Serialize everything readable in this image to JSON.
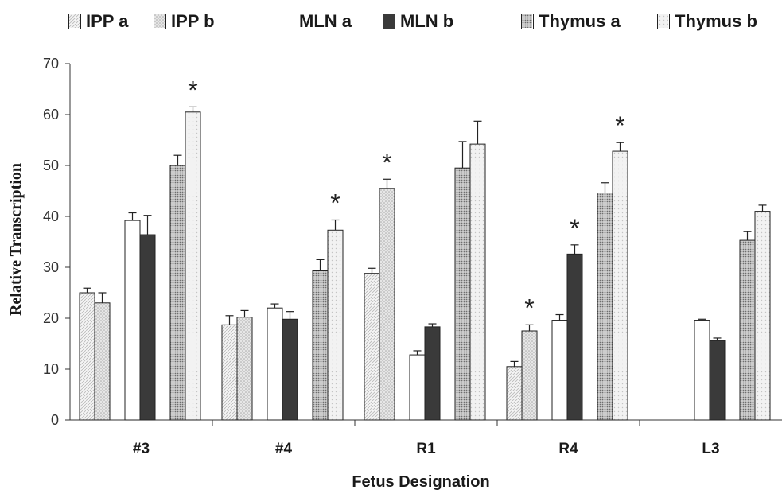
{
  "chart_data": {
    "type": "bar",
    "xlabel": "Fetus Designation",
    "ylabel": "Relative Transcription",
    "ylim": [
      0,
      70
    ],
    "yticks": [
      0,
      10,
      20,
      30,
      40,
      50,
      60,
      70
    ],
    "categories": [
      "#3",
      "#4",
      "R1",
      "R4",
      "L3"
    ],
    "legend_position": "top",
    "grid": false,
    "significance_marker": "*",
    "series": [
      {
        "name": "IPP a",
        "pattern": "fine-hatch",
        "values": [
          25,
          18.7,
          28.8,
          10.5,
          null
        ],
        "errors": [
          0.9,
          1.8,
          1.0,
          1.0,
          null
        ],
        "significant": [
          false,
          false,
          false,
          false,
          false
        ]
      },
      {
        "name": "IPP b",
        "pattern": "light-dots",
        "values": [
          23,
          20.2,
          45.5,
          17.5,
          null
        ],
        "errors": [
          2.0,
          1.3,
          1.8,
          1.2,
          null
        ],
        "significant": [
          false,
          false,
          true,
          true,
          false
        ]
      },
      {
        "name": "MLN a",
        "pattern": "white",
        "values": [
          39.2,
          22,
          12.8,
          19.6,
          19.6
        ],
        "errors": [
          1.5,
          0.8,
          0.8,
          1.1,
          0.2
        ],
        "significant": [
          false,
          false,
          false,
          false,
          false
        ]
      },
      {
        "name": "MLN b",
        "pattern": "dark",
        "values": [
          36.4,
          19.8,
          18.3,
          32.6,
          15.6
        ],
        "errors": [
          3.8,
          1.5,
          0.6,
          1.8,
          0.5
        ],
        "significant": [
          false,
          false,
          false,
          true,
          false
        ]
      },
      {
        "name": "Thymus a",
        "pattern": "dense-dots",
        "values": [
          50,
          29.3,
          49.5,
          44.6,
          35.3
        ],
        "errors": [
          2.0,
          2.2,
          5.2,
          2.0,
          1.7
        ],
        "significant": [
          false,
          false,
          false,
          false,
          false
        ]
      },
      {
        "name": "Thymus b",
        "pattern": "light-dots-2",
        "values": [
          60.5,
          37.3,
          54.2,
          52.8,
          41.0
        ],
        "errors": [
          1.0,
          2.0,
          4.5,
          1.7,
          1.2
        ],
        "significant": [
          true,
          true,
          false,
          true,
          false
        ]
      }
    ]
  }
}
